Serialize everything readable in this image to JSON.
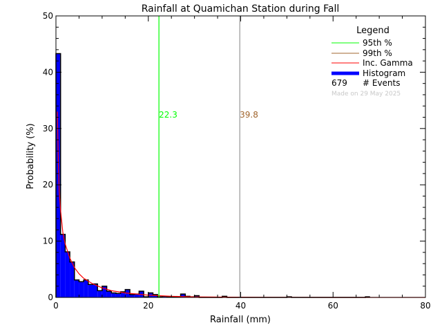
{
  "chart_data": {
    "type": "bar",
    "title": "Rainfall at Quamichan Station during Fall",
    "xlabel": "Rainfall (mm)",
    "ylabel": "Probability (%)",
    "xlim": [
      0,
      80
    ],
    "ylim": [
      0,
      50
    ],
    "xticks": [
      "0",
      "20",
      "40",
      "60",
      "80"
    ],
    "yticks": [
      "0",
      "10",
      "20",
      "30",
      "40",
      "50"
    ],
    "bin_width": 1,
    "histogram": [
      43.3,
      11.2,
      8.1,
      6.3,
      3.1,
      2.8,
      3.1,
      2.3,
      2.4,
      1.2,
      2.0,
      1.1,
      0.8,
      0.7,
      1.0,
      1.4,
      0.5,
      0.6,
      1.1,
      0.1,
      0.8,
      0.5,
      0.1,
      0.2,
      0.1,
      0.1,
      0.1,
      0.6,
      0.2,
      0.1,
      0.3,
      0,
      0,
      0,
      0,
      0,
      0.2,
      0,
      0,
      0,
      0,
      0,
      0,
      0,
      0,
      0,
      0,
      0,
      0,
      0,
      0.1,
      0,
      0,
      0,
      0,
      0,
      0,
      0,
      0,
      0,
      0,
      0,
      0,
      0,
      0,
      0,
      0,
      0.1
    ],
    "gamma_curve": {
      "x": [
        0.3,
        0.5,
        0.7,
        1,
        1.5,
        2,
        3,
        4,
        5,
        6,
        8,
        10,
        12,
        15,
        20,
        25,
        30,
        40,
        60,
        80
      ],
      "y": [
        33,
        25,
        19,
        15.5,
        11.5,
        9.5,
        7,
        5.3,
        4.2,
        3.4,
        2.4,
        1.7,
        1.2,
        0.8,
        0.4,
        0.2,
        0.1,
        0.03,
        0,
        0
      ]
    },
    "percentile_95": {
      "value": 22.3,
      "label": "22.3",
      "color": "#00ff00"
    },
    "percentile_99": {
      "value": 39.8,
      "label": "39.8",
      "color": "#a0642c"
    },
    "legend": {
      "title": "Legend",
      "placement": "top-right",
      "entries": [
        {
          "label": "95th %",
          "color": "#00ff00"
        },
        {
          "label": "99th %",
          "color": "#a0642c"
        },
        {
          "label": "Inc. Gamma",
          "color": "#ff0000"
        },
        {
          "label": "Histogram",
          "color": "#0000ff"
        }
      ],
      "events_count": "679",
      "events_label": "# Events",
      "made_on": "Made on 29 May 2025"
    }
  }
}
